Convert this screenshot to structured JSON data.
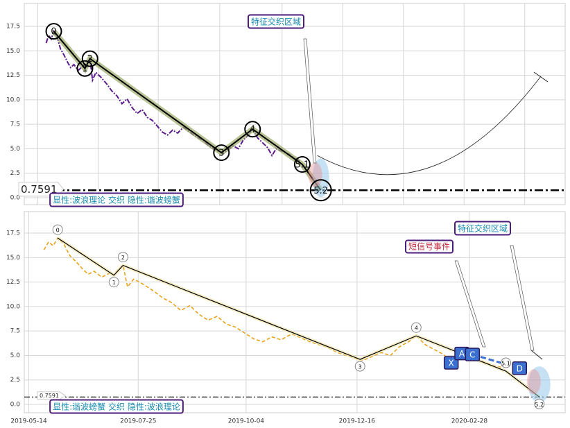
{
  "chart_data": [
    {
      "type": "line",
      "xlim": [
        "2019-04-28",
        "2021-01-29"
      ],
      "ylim": [
        -0.71,
        19.84
      ],
      "xticks": [
        "2019-05-14",
        "2019-07-25",
        "2019-10-04",
        "2019-12-16",
        "2020-02-28",
        "2020-05-10",
        "2020-07-21",
        "2020-10-01",
        "2020-12-12"
      ],
      "xtick_labels": false,
      "yticks": [
        {
          "value": 0,
          "label": "0.0"
        },
        2.5,
        {
          "value": 5,
          "label": "5.0"
        },
        7.5,
        {
          "value": 10,
          "label": "10.0"
        },
        12.5,
        {
          "value": 15,
          "label": "15.0"
        },
        17.5
      ],
      "grid": true,
      "color": "#5b1a8a",
      "linestyle": "dashdot",
      "x": [
        "2019-05-24",
        "2019-05-27",
        "2019-05-30",
        "2019-06-02",
        "2019-06-06",
        "2019-06-10",
        "2019-06-14",
        "2019-06-18",
        "2019-06-22",
        "2019-06-26",
        "2019-07-01",
        "2019-07-06",
        "2019-07-09",
        "2019-07-12",
        "2019-07-15",
        "2019-07-18",
        "2019-07-22",
        "2019-07-28",
        "2019-08-04",
        "2019-08-10",
        "2019-08-16",
        "2019-08-22",
        "2019-08-28",
        "2019-09-03",
        "2019-09-09",
        "2019-09-15",
        "2019-09-21",
        "2019-09-27",
        "2019-10-03",
        "2019-10-09",
        "2019-10-15",
        "2019-10-21",
        "2019-10-27",
        "2019-11-03",
        "2019-11-09",
        "2019-11-15",
        "2019-11-21",
        "2019-11-27",
        "2019-12-03",
        "2019-12-09",
        "2019-12-15",
        "2019-12-20",
        "2019-12-26",
        "2020-01-01",
        "2020-01-07",
        "2020-01-13",
        "2020-01-19",
        "2020-01-24",
        "2020-01-30",
        "2020-02-05",
        "2020-02-11",
        "2020-02-16",
        "2020-02-21",
        "2020-02-26",
        "2020-03-03",
        "2020-03-08",
        "2020-03-14",
        "2020-03-20"
      ],
      "values": [
        15.8,
        16.6,
        16.2,
        17.0,
        16.4,
        15.2,
        14.6,
        13.9,
        13.3,
        13.6,
        13.0,
        13.4,
        13.2,
        13.8,
        14.2,
        12.0,
        12.8,
        12.3,
        11.6,
        10.9,
        10.4,
        9.6,
        10.1,
        9.2,
        8.6,
        9.0,
        8.2,
        7.9,
        7.3,
        6.7,
        6.4,
        6.9,
        6.6,
        7.2,
        6.8,
        6.4,
        6.1,
        5.8,
        5.3,
        5.0,
        4.7,
        4.5,
        4.9,
        5.3,
        5.0,
        5.9,
        6.4,
        7.0,
        6.1,
        5.6,
        5.1,
        4.3,
        5.0,
        4.8,
        4.6,
        4.4,
        4.0,
        3.8
      ],
      "waves": {
        "labels": [
          "0",
          "1",
          "2",
          "3",
          "4",
          "5.1",
          "5.2"
        ],
        "x": [
          "2019-06-02",
          "2019-07-09",
          "2019-07-15",
          "2019-12-18",
          "2020-01-24",
          "2020-03-23",
          "2020-04-14"
        ],
        "values": [
          17.0,
          13.2,
          14.2,
          4.6,
          7.0,
          3.4,
          0.76
        ]
      },
      "level": {
        "value": 0.7591,
        "label": "0.7591"
      },
      "annotations": [
        {
          "text": "特征交织区域",
          "color": "#1a8bb0"
        },
        {
          "text": "显性:波浪理论 交织 隐性:谐波螃蟹",
          "color": "#1a8bb0"
        }
      ]
    },
    {
      "type": "line",
      "xlim": [
        "2019-05-11",
        "2020-05-01"
      ],
      "ylim": [
        -0.85,
        19.7
      ],
      "xticks": [
        "2019-05-14",
        "2019-07-25",
        "2019-10-04",
        "2019-12-16",
        "2020-02-28"
      ],
      "xtick_labels": true,
      "yticks": [
        {
          "value": 0,
          "label": "0.0"
        },
        2.5,
        {
          "value": 5,
          "label": "5.0"
        },
        7.5,
        {
          "value": 10,
          "label": "10.0"
        },
        12.5,
        {
          "value": 15,
          "label": "15.0"
        },
        17.5
      ],
      "grid": true,
      "color": "#e8a21a",
      "linestyle": "dashed",
      "x": [
        "2019-05-24",
        "2019-05-27",
        "2019-05-30",
        "2019-06-02",
        "2019-06-06",
        "2019-06-10",
        "2019-06-14",
        "2019-06-18",
        "2019-06-22",
        "2019-06-26",
        "2019-07-01",
        "2019-07-06",
        "2019-07-09",
        "2019-07-12",
        "2019-07-15",
        "2019-07-18",
        "2019-07-22",
        "2019-07-28",
        "2019-08-04",
        "2019-08-10",
        "2019-08-16",
        "2019-08-22",
        "2019-08-28",
        "2019-09-03",
        "2019-09-09",
        "2019-09-15",
        "2019-09-21",
        "2019-09-27",
        "2019-10-03",
        "2019-10-09",
        "2019-10-15",
        "2019-10-21",
        "2019-10-27",
        "2019-11-03",
        "2019-11-09",
        "2019-11-15",
        "2019-11-21",
        "2019-11-27",
        "2019-12-03",
        "2019-12-09",
        "2019-12-15",
        "2019-12-20",
        "2019-12-26",
        "2020-01-01",
        "2020-01-07",
        "2020-01-13",
        "2020-01-19",
        "2020-01-24",
        "2020-01-30",
        "2020-02-05",
        "2020-02-11",
        "2020-02-16",
        "2020-02-21",
        "2020-02-26",
        "2020-03-03",
        "2020-03-08",
        "2020-03-14",
        "2020-03-20"
      ],
      "values": [
        15.8,
        16.6,
        16.2,
        17.0,
        16.4,
        15.2,
        14.6,
        13.9,
        13.3,
        13.6,
        13.0,
        13.4,
        13.2,
        13.8,
        14.2,
        12.0,
        12.8,
        12.3,
        11.6,
        10.9,
        10.4,
        9.6,
        10.1,
        9.2,
        8.6,
        9.0,
        8.2,
        7.9,
        7.3,
        6.7,
        6.4,
        6.9,
        6.6,
        7.2,
        6.8,
        6.4,
        6.1,
        5.8,
        5.3,
        5.0,
        4.7,
        4.5,
        4.9,
        5.3,
        5.0,
        5.9,
        6.4,
        7.0,
        6.1,
        5.6,
        5.1,
        4.3,
        5.0,
        4.8,
        4.6,
        4.4,
        4.0,
        3.8
      ],
      "waves": {
        "labels": [
          "0",
          "1",
          "2",
          "3",
          "4",
          "5.1",
          "5.2"
        ],
        "x": [
          "2019-06-02",
          "2019-07-09",
          "2019-07-15",
          "2019-12-18",
          "2020-01-24",
          "2020-03-23",
          "2020-04-14"
        ],
        "values": [
          17.0,
          13.2,
          14.2,
          4.6,
          7.0,
          3.4,
          0.76
        ]
      },
      "harmonic": {
        "labels": [
          "X",
          "A",
          "C",
          "D"
        ],
        "x": [
          "2020-02-16",
          "2020-02-23",
          "2020-03-01",
          "2020-04-01"
        ],
        "values": [
          4.25,
          5.2,
          5.1,
          3.7
        ],
        "color": "#3b6fd0"
      },
      "level": {
        "value": 0.7591,
        "label": "0.7591"
      },
      "annotations": [
        {
          "text": "特征交织区域",
          "color": "#1a8bb0"
        },
        {
          "text": "短信号事件",
          "color": "#c0283c"
        },
        {
          "text": "显性:谐波螃蟹 交织 隐性:波浪理论",
          "color": "#1a8bb0"
        }
      ]
    }
  ]
}
